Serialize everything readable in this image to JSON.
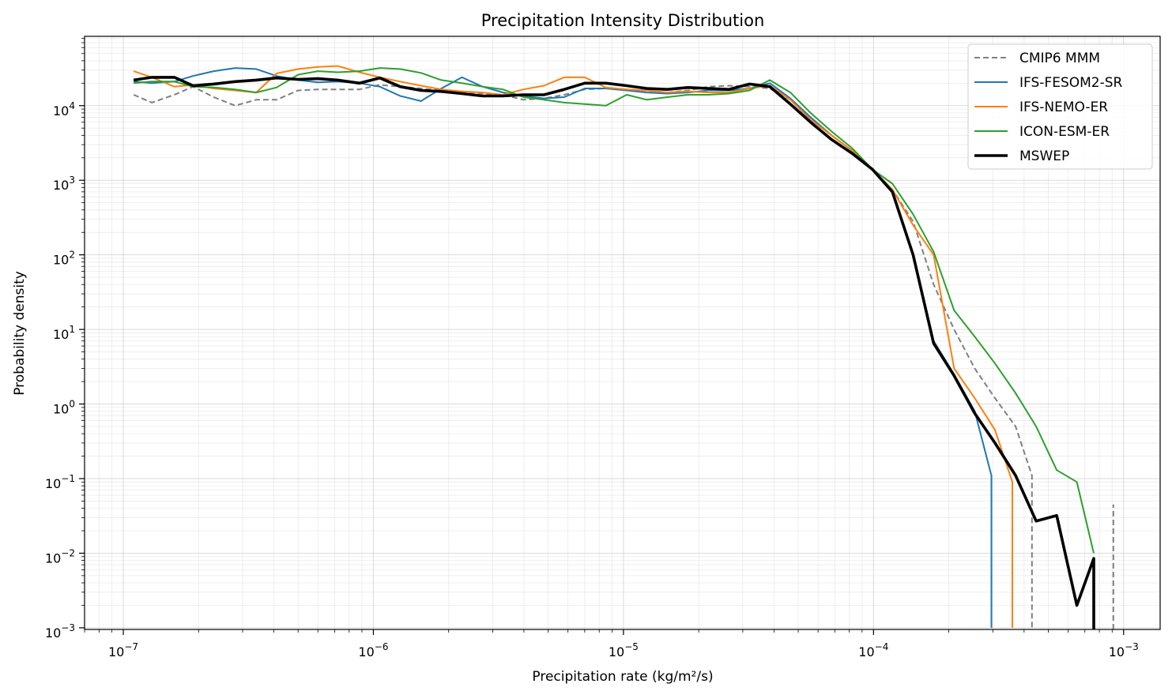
{
  "chart_data": {
    "type": "line",
    "title": "Precipitation Intensity Distribution",
    "xlabel": "Precipitation rate (kg/m²/s)",
    "ylabel": "Probability density",
    "xscale": "log",
    "yscale": "log",
    "xlim": [
      7e-08,
      0.0014
    ],
    "ylim": [
      0.00095,
      85000
    ],
    "grid": "on (major and minor)",
    "legend_placement": "top-right",
    "x_ticks": [
      {
        "value": 1e-07,
        "base": "10",
        "exp": "−7"
      },
      {
        "value": 1e-06,
        "base": "10",
        "exp": "−6"
      },
      {
        "value": 1e-05,
        "base": "10",
        "exp": "−5"
      },
      {
        "value": 0.0001,
        "base": "10",
        "exp": "−4"
      },
      {
        "value": 0.001,
        "base": "10",
        "exp": "−3"
      }
    ],
    "y_ticks": [
      {
        "value": 0.001,
        "base": "10",
        "exp": "−3"
      },
      {
        "value": 0.01,
        "base": "10",
        "exp": "−2"
      },
      {
        "value": 0.1,
        "base": "10",
        "exp": "−1"
      },
      {
        "value": 1,
        "base": "10",
        "exp": "0"
      },
      {
        "value": 10,
        "base": "10",
        "exp": "1"
      },
      {
        "value": 100,
        "base": "10",
        "exp": "2"
      },
      {
        "value": 1000,
        "base": "10",
        "exp": "3"
      },
      {
        "value": 10000,
        "base": "10",
        "exp": "4"
      }
    ],
    "series": [
      {
        "name": "CMIP6 MMM",
        "color": "#808080",
        "dash": true,
        "width": 2,
        "x": [
          1.1e-07,
          1.3e-07,
          1.6e-07,
          1.9e-07,
          2.3e-07,
          2.8e-07,
          3.4e-07,
          4.1e-07,
          5e-07,
          6e-07,
          7.2e-07,
          8.8e-07,
          1.06e-06,
          1.28e-06,
          1.55e-06,
          1.87e-06,
          2.26e-06,
          2.73e-06,
          3.3e-06,
          3.98e-06,
          4.81e-06,
          5.8e-06,
          7e-06,
          8.5e-06,
          1.03e-05,
          1.24e-05,
          1.5e-05,
          1.81e-05,
          2.19e-05,
          2.64e-05,
          3.19e-05,
          3.85e-05,
          4.65e-05,
          5.6e-05,
          6.8e-05,
          8.2e-05,
          9.9e-05,
          0.000119,
          0.000144,
          0.000174,
          0.00021,
          0.000254,
          0.000306,
          0.00037,
          0.00043,
          0.00043
        ],
        "y": [
          14000,
          11000,
          14000,
          18000,
          13000,
          10000,
          12000,
          12000,
          16000,
          16500,
          16500,
          16500,
          19000,
          18000,
          17000,
          16000,
          15500,
          14500,
          14000,
          12000,
          12500,
          14000,
          16500,
          17000,
          16500,
          15000,
          15000,
          16000,
          18000,
          18500,
          18000,
          17000,
          12000,
          6500,
          4000,
          2500,
          1400,
          750,
          280,
          40,
          10,
          3,
          1.2,
          0.5,
          0.11,
          0.001
        ]
      },
      {
        "name": "IFS-FESOM2-SR",
        "color": "#1f77b4",
        "dash": false,
        "width": 2,
        "x": [
          1.1e-07,
          1.3e-07,
          1.6e-07,
          1.9e-07,
          2.3e-07,
          2.8e-07,
          3.4e-07,
          4.1e-07,
          5e-07,
          6e-07,
          7.2e-07,
          8.8e-07,
          1.06e-06,
          1.28e-06,
          1.55e-06,
          1.87e-06,
          2.26e-06,
          2.73e-06,
          3.3e-06,
          3.98e-06,
          4.81e-06,
          5.8e-06,
          7e-06,
          8.5e-06,
          1.03e-05,
          1.24e-05,
          1.5e-05,
          1.81e-05,
          2.19e-05,
          2.64e-05,
          3.19e-05,
          3.85e-05,
          4.65e-05,
          5.6e-05,
          6.8e-05,
          8.2e-05,
          9.9e-05,
          0.000119,
          0.000144,
          0.000174,
          0.00021,
          0.000254,
          0.000296,
          0.000296
        ],
        "y": [
          21000,
          20000,
          21000,
          25000,
          29000,
          32000,
          31000,
          25000,
          22000,
          20500,
          21000,
          20000,
          18000,
          13500,
          11500,
          17000,
          24000,
          18000,
          15000,
          13500,
          12500,
          13000,
          17000,
          17000,
          16000,
          15000,
          14500,
          15000,
          16000,
          16000,
          17000,
          20000,
          12500,
          7000,
          4000,
          2500,
          1400,
          700,
          100,
          7,
          2.5,
          0.8,
          0.11,
          0.001
        ]
      },
      {
        "name": "IFS-NEMO-ER",
        "color": "#ff7f0e",
        "dash": false,
        "width": 2,
        "x": [
          1.1e-07,
          1.3e-07,
          1.6e-07,
          1.9e-07,
          2.3e-07,
          2.8e-07,
          3.4e-07,
          4.1e-07,
          5e-07,
          6e-07,
          7.2e-07,
          8.8e-07,
          1.06e-06,
          1.28e-06,
          1.55e-06,
          1.87e-06,
          2.26e-06,
          2.73e-06,
          3.3e-06,
          3.98e-06,
          4.81e-06,
          5.8e-06,
          7e-06,
          8.5e-06,
          1.03e-05,
          1.24e-05,
          1.5e-05,
          1.81e-05,
          2.19e-05,
          2.64e-05,
          3.19e-05,
          3.85e-05,
          4.65e-05,
          5.6e-05,
          6.8e-05,
          8.2e-05,
          9.9e-05,
          0.000119,
          0.000144,
          0.000174,
          0.00021,
          0.000254,
          0.000306,
          0.000359,
          0.000359
        ],
        "y": [
          29000,
          24000,
          18000,
          19000,
          17000,
          16000,
          15000,
          27000,
          31000,
          33000,
          34000,
          28000,
          24000,
          21000,
          18500,
          16500,
          15500,
          15000,
          14000,
          16500,
          18500,
          24000,
          24000,
          17500,
          16500,
          16000,
          15000,
          15500,
          15000,
          15000,
          17000,
          18500,
          12000,
          6500,
          4000,
          2500,
          1400,
          750,
          250,
          100,
          3,
          1.2,
          0.45,
          0.09,
          0.001
        ]
      },
      {
        "name": "ICON-ESM-ER",
        "color": "#2ca02c",
        "dash": false,
        "width": 2,
        "x": [
          1.1e-07,
          1.3e-07,
          1.6e-07,
          1.9e-07,
          2.3e-07,
          2.8e-07,
          3.4e-07,
          4.1e-07,
          5e-07,
          6e-07,
          7.2e-07,
          8.8e-07,
          1.06e-06,
          1.28e-06,
          1.55e-06,
          1.87e-06,
          2.26e-06,
          2.73e-06,
          3.3e-06,
          3.98e-06,
          4.81e-06,
          5.8e-06,
          7e-06,
          8.5e-06,
          1.03e-05,
          1.24e-05,
          1.5e-05,
          1.81e-05,
          2.19e-05,
          2.64e-05,
          3.19e-05,
          3.85e-05,
          4.65e-05,
          5.6e-05,
          6.8e-05,
          8.2e-05,
          9.9e-05,
          0.000119,
          0.000144,
          0.000174,
          0.00021,
          0.000254,
          0.000306,
          0.00037,
          0.000447,
          0.00054,
          0.00065,
          0.00076
        ],
        "y": [
          20000,
          21000,
          21000,
          18000,
          17500,
          16500,
          15000,
          17500,
          26000,
          29000,
          28000,
          29000,
          32000,
          31000,
          27500,
          22000,
          20000,
          18000,
          16500,
          13000,
          12000,
          11000,
          10500,
          10000,
          14000,
          12000,
          13000,
          14000,
          14000,
          14500,
          16000,
          22000,
          15000,
          8000,
          4500,
          2700,
          1400,
          900,
          350,
          110,
          18,
          8,
          3.5,
          1.4,
          0.5,
          0.13,
          0.09,
          0.01
        ]
      },
      {
        "name": "MSWEP",
        "color": "#000000",
        "dash": false,
        "width": 3.6,
        "x": [
          1.1e-07,
          1.3e-07,
          1.6e-07,
          1.9e-07,
          2.3e-07,
          2.8e-07,
          3.4e-07,
          4.1e-07,
          5e-07,
          6e-07,
          7.2e-07,
          8.8e-07,
          1.06e-06,
          1.28e-06,
          1.55e-06,
          1.87e-06,
          2.26e-06,
          2.73e-06,
          3.3e-06,
          3.98e-06,
          4.81e-06,
          5.8e-06,
          7e-06,
          8.5e-06,
          1.03e-05,
          1.24e-05,
          1.5e-05,
          1.81e-05,
          2.19e-05,
          2.64e-05,
          3.19e-05,
          3.85e-05,
          4.65e-05,
          5.6e-05,
          6.8e-05,
          8.2e-05,
          9.9e-05,
          0.000119,
          0.000144,
          0.000174,
          0.00021,
          0.000254,
          0.000306,
          0.00037,
          0.000447,
          0.00054,
          0.00065,
          0.00076,
          0.00076
        ],
        "y": [
          22000,
          24000,
          24000,
          18500,
          19500,
          21000,
          22000,
          23500,
          22500,
          23000,
          22000,
          20000,
          23500,
          18000,
          16000,
          15500,
          14500,
          13500,
          13500,
          14000,
          14000,
          16500,
          20000,
          20000,
          18500,
          17000,
          16500,
          17500,
          17000,
          16500,
          19500,
          18000,
          10500,
          6000,
          3500,
          2300,
          1400,
          700,
          100,
          6.5,
          2.4,
          0.75,
          0.3,
          0.11,
          0.027,
          0.032,
          0.002,
          0.0085,
          0.00095
        ]
      }
    ],
    "extra_marks": [
      {
        "series": "CMIP6 MMM",
        "x": 0.00091,
        "y": [
          0.00095,
          0.045
        ]
      }
    ]
  }
}
